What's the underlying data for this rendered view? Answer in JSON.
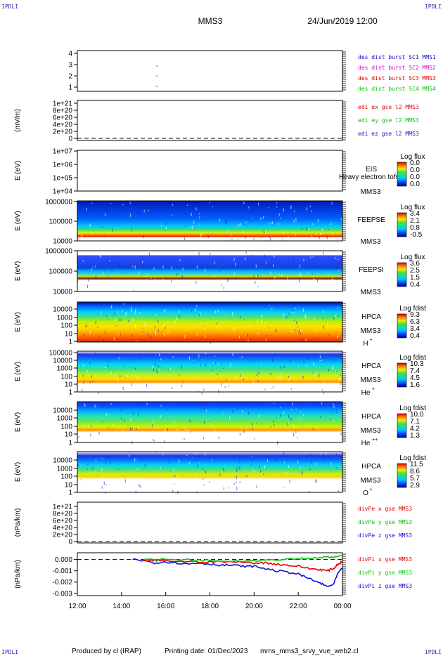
{
  "header": {
    "corner_tl": "IPDLI",
    "corner_tr": "IPDLI",
    "corner_bl": "IPDLI",
    "corner_br": "IPDLI",
    "mission": "MMS3",
    "datetime": "24/Jun/2019 12:00"
  },
  "footer": {
    "produced": "Produced by cl (IRAP)",
    "printing": "Printing date: 01/Dec/2023",
    "file": "mms_mms3_srvy_vue_web2.cl"
  },
  "colors": {
    "red": "#e00000",
    "green": "#10c010",
    "blue": "#1010d0",
    "magenta": "#e000e0",
    "frame": "#000000"
  },
  "chart_data": {
    "type": "multi-panel",
    "x_tick_labels": [
      "12:00",
      "14:00",
      "16:00",
      "18:00",
      "20:00",
      "22:00",
      "00:00"
    ],
    "xlim": [
      12,
      24
    ],
    "panels": [
      {
        "id": "p1",
        "type": "scatter",
        "ylim": [
          0.5,
          4.5
        ],
        "ytick_labels": [
          "1",
          "2",
          "3",
          "4"
        ],
        "legend": [
          {
            "text": "des dist burst SC1 MMS1",
            "color": "#1010d0"
          },
          {
            "text": "des dist burst SC2 MMS2",
            "color": "#e000e0"
          },
          {
            "text": "des dist burst SC3 MMS3",
            "color": "#e00000"
          },
          {
            "text": "des dist burst SC4 MMS4",
            "color": "#10c010"
          }
        ],
        "points": [
          {
            "x": 15.6,
            "y": 3,
            "color": "#e00000"
          },
          {
            "x": 15.6,
            "y": 2,
            "color": "#e00000"
          },
          {
            "x": 15.6,
            "y": 1,
            "color": "#1010d0"
          }
        ]
      },
      {
        "id": "p2",
        "type": "line",
        "ylabel": "(mV/m)",
        "ytick_labels": [
          "0",
          "2e+20",
          "4e+20",
          "6e+20",
          "8e+20",
          "1e+21"
        ],
        "legend": [
          {
            "text": "edi ex gse l2 MMS3",
            "color": "#e00000"
          },
          {
            "text": "edi ey gse l2 MMS3",
            "color": "#10c010"
          },
          {
            "text": "edi ez gse l2 MMS3",
            "color": "#1010d0"
          }
        ]
      },
      {
        "id": "p3",
        "type": "heatmap",
        "ylabel": "E (eV)",
        "ytick_labels": [
          "1e+04",
          "1e+05",
          "1e+06",
          "1e+07"
        ],
        "instrument": "EIS",
        "sc": "MMS3",
        "overlay_text": "Heavy electron tofs",
        "colorbar_title": "Log flux",
        "colorbar_ticks": [
          "0.0",
          "0.0",
          "0.0",
          "0.0"
        ]
      },
      {
        "id": "p4",
        "type": "heatmap",
        "ylabel": "E (eV)",
        "ytick_labels": [
          "10000",
          "100000",
          "1000000"
        ],
        "instrument": "FEEPSE",
        "sc": "MMS3",
        "colorbar_title": "Log flux",
        "colorbar_ticks": [
          "3.4",
          "2.1",
          "0.8",
          "-0.5"
        ]
      },
      {
        "id": "p5",
        "type": "heatmap",
        "ylabel": "E (eV)",
        "ytick_labels": [
          "10000",
          "100000",
          "1000000"
        ],
        "instrument": "FEEPSI",
        "sc": "MMS3",
        "colorbar_title": "Log flux",
        "colorbar_ticks": [
          "3.6",
          "2.5",
          "1.5",
          "0.4"
        ]
      },
      {
        "id": "p6",
        "type": "heatmap",
        "ylabel": "E (eV)",
        "ytick_labels": [
          "1",
          "10",
          "100",
          "1000",
          "10000"
        ],
        "instrument": "HPCA",
        "sc": "MMS3",
        "species_base": "H",
        "species_sup": "+",
        "colorbar_title": "Log fdist",
        "colorbar_ticks": [
          "9.3",
          "6.3",
          "3.4",
          "0.4"
        ]
      },
      {
        "id": "p7",
        "type": "heatmap",
        "ylabel": "E (eV)",
        "ytick_labels": [
          "1",
          "10",
          "100",
          "1000",
          "10000",
          "100000"
        ],
        "instrument": "HPCA",
        "sc": "MMS3",
        "species_base": "He",
        "species_sup": "+",
        "colorbar_title": "Log fdist",
        "colorbar_ticks": [
          "10.3",
          "7.4",
          "4.5",
          "1.6"
        ]
      },
      {
        "id": "p8",
        "type": "heatmap",
        "ylabel": "E (eV)",
        "ytick_labels": [
          "1",
          "10",
          "100",
          "1000",
          "10000"
        ],
        "instrument": "HPCA",
        "sc": "MMS3",
        "species_base": "He",
        "species_sup": "++",
        "colorbar_title": "Log fdist",
        "colorbar_ticks": [
          "10.0",
          "7.1",
          "4.2",
          "1.3"
        ]
      },
      {
        "id": "p9",
        "type": "heatmap",
        "ylabel": "E (eV)",
        "ytick_labels": [
          "1",
          "10",
          "100",
          "1000",
          "10000"
        ],
        "instrument": "HPCA",
        "sc": "MMS3",
        "species_base": "O",
        "species_sup": "+",
        "colorbar_title": "Log fdist",
        "colorbar_ticks": [
          "11.5",
          "8.6",
          "5.7",
          "2.9"
        ]
      },
      {
        "id": "p10",
        "type": "line",
        "ylabel": "(nPa/km)",
        "ytick_labels": [
          "0",
          "2e+20",
          "4e+20",
          "6e+20",
          "8e+20",
          "1e+21"
        ],
        "legend": [
          {
            "text": "divPe x gse MMS3",
            "color": "#e00000"
          },
          {
            "text": "divPe y gse MMS3",
            "color": "#10c010"
          },
          {
            "text": "divPe z gse MMS3",
            "color": "#1010d0"
          }
        ]
      },
      {
        "id": "p11",
        "type": "line",
        "ylabel": "(nPa/km)",
        "ylim": [
          -0.0032,
          0.0006
        ],
        "ytick_labels": [
          "0.000",
          "-0.001",
          "-0.002",
          "-0.003"
        ],
        "ytick_values": [
          0,
          -0.001,
          -0.002,
          -0.003
        ],
        "legend": [
          {
            "text": "divPi x gse MMS3",
            "color": "#e00000"
          },
          {
            "text": "divPi y gse MMS3",
            "color": "#10c010"
          },
          {
            "text": "divPi z gse MMS3",
            "color": "#1010d0"
          }
        ],
        "series": [
          {
            "color": "#1010d0",
            "x": [
              14.5,
              15.0,
              15.5,
              16.0,
              16.5,
              17.0,
              17.5,
              18.0,
              18.5,
              19.0,
              19.5,
              20.0,
              20.5,
              21.0,
              21.5,
              22.0,
              22.5,
              23.0,
              23.3,
              23.6,
              23.8,
              24.0
            ],
            "y": [
              0.0,
              -0.0001,
              -0.0003,
              -0.0002,
              -0.0003,
              -0.0004,
              -0.0003,
              -0.0004,
              -0.0005,
              -0.0005,
              -0.0006,
              -0.0006,
              -0.0008,
              -0.001,
              -0.0011,
              -0.0013,
              -0.0017,
              -0.0021,
              -0.0024,
              -0.0022,
              -0.0012,
              -0.0008
            ]
          },
          {
            "color": "#e00000",
            "x": [
              15.0,
              15.5,
              16.0,
              17.0,
              18.0,
              19.0,
              20.0,
              20.5,
              21.0,
              21.5,
              22.0,
              22.5,
              23.0,
              23.3,
              23.6,
              23.8,
              24.0
            ],
            "y": [
              -0.0001,
              -0.0001,
              -0.0001,
              -0.0002,
              -0.0002,
              -0.0002,
              -0.0003,
              -0.0003,
              -0.0004,
              -0.0005,
              -0.0006,
              -0.0008,
              -0.0009,
              -0.001,
              -0.0008,
              -0.0004,
              -0.0002
            ]
          },
          {
            "color": "#10c010",
            "x": [
              15.0,
              16.0,
              17.0,
              18.0,
              19.0,
              20.0,
              21.0,
              22.0,
              22.5,
              23.0,
              23.5,
              24.0
            ],
            "y": [
              0.0,
              0.0,
              0.0,
              -0.0001,
              -0.0001,
              -0.0001,
              0.0,
              0.0001,
              0.0001,
              0.0002,
              0.0002,
              0.0003
            ]
          }
        ]
      }
    ]
  }
}
